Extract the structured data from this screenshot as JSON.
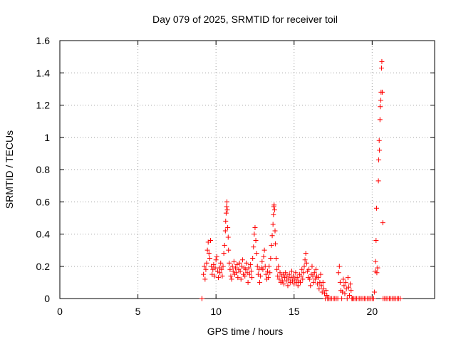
{
  "chart_data": {
    "type": "scatter",
    "title": "Day 079 of 2025, SRMTID for receiver toil",
    "xlabel": "GPS time / hours",
    "ylabel": "SRMTID / TECUs",
    "xlim": [
      0,
      24
    ],
    "ylim": [
      0,
      1.6
    ],
    "xticks": [
      0,
      5,
      10,
      15,
      20
    ],
    "xtick_labels": [
      "0",
      "5",
      "10",
      "15",
      "20"
    ],
    "yticks": [
      0,
      0.2,
      0.4,
      0.6,
      0.8,
      1.0,
      1.2,
      1.4,
      1.6
    ],
    "ytick_labels": [
      "0",
      "0.2",
      "0.4",
      "0.6",
      "0.8",
      "1",
      "1.2",
      "1.4",
      "1.6"
    ],
    "grid": true,
    "marker": "+",
    "color": "#ff0000",
    "series": [
      {
        "name": "SRMTID",
        "points": [
          [
            9.1,
            0.0
          ],
          [
            9.1,
            0.0
          ],
          [
            9.2,
            0.15
          ],
          [
            9.25,
            0.2
          ],
          [
            9.3,
            0.12
          ],
          [
            9.35,
            0.18
          ],
          [
            9.4,
            0.22
          ],
          [
            9.45,
            0.3
          ],
          [
            9.5,
            0.35
          ],
          [
            9.55,
            0.28
          ],
          [
            9.6,
            0.25
          ],
          [
            9.65,
            0.36
          ],
          [
            9.7,
            0.2
          ],
          [
            9.75,
            0.15
          ],
          [
            9.8,
            0.18
          ],
          [
            9.85,
            0.21
          ],
          [
            9.9,
            0.14
          ],
          [
            9.95,
            0.19
          ],
          [
            10.0,
            0.24
          ],
          [
            10.05,
            0.26
          ],
          [
            10.1,
            0.17
          ],
          [
            10.15,
            0.13
          ],
          [
            10.2,
            0.19
          ],
          [
            10.25,
            0.16
          ],
          [
            10.3,
            0.22
          ],
          [
            10.35,
            0.18
          ],
          [
            10.4,
            0.14
          ],
          [
            10.45,
            0.2
          ],
          [
            10.5,
            0.28
          ],
          [
            10.55,
            0.33
          ],
          [
            10.6,
            0.42
          ],
          [
            10.62,
            0.48
          ],
          [
            10.65,
            0.53
          ],
          [
            10.68,
            0.57
          ],
          [
            10.7,
            0.6
          ],
          [
            10.72,
            0.55
          ],
          [
            10.75,
            0.44
          ],
          [
            10.78,
            0.38
          ],
          [
            10.8,
            0.3
          ],
          [
            10.85,
            0.22
          ],
          [
            10.9,
            0.18
          ],
          [
            10.95,
            0.14
          ],
          [
            11.0,
            0.12
          ],
          [
            11.05,
            0.2
          ],
          [
            11.1,
            0.17
          ],
          [
            11.15,
            0.23
          ],
          [
            11.2,
            0.15
          ],
          [
            11.25,
            0.19
          ],
          [
            11.3,
            0.16
          ],
          [
            11.35,
            0.21
          ],
          [
            11.4,
            0.13
          ],
          [
            11.45,
            0.18
          ],
          [
            11.5,
            0.22
          ],
          [
            11.55,
            0.17
          ],
          [
            11.6,
            0.12
          ],
          [
            11.65,
            0.2
          ],
          [
            11.7,
            0.24
          ],
          [
            11.75,
            0.15
          ],
          [
            11.8,
            0.19
          ],
          [
            11.85,
            0.14
          ],
          [
            11.9,
            0.18
          ],
          [
            11.95,
            0.22
          ],
          [
            12.0,
            0.16
          ],
          [
            12.05,
            0.1
          ],
          [
            12.1,
            0.19
          ],
          [
            12.15,
            0.15
          ],
          [
            12.2,
            0.21
          ],
          [
            12.25,
            0.17
          ],
          [
            12.3,
            0.13
          ],
          [
            12.35,
            0.25
          ],
          [
            12.4,
            0.32
          ],
          [
            12.45,
            0.4
          ],
          [
            12.5,
            0.44
          ],
          [
            12.55,
            0.36
          ],
          [
            12.6,
            0.28
          ],
          [
            12.65,
            0.2
          ],
          [
            12.7,
            0.15
          ],
          [
            12.75,
            0.18
          ],
          [
            12.8,
            0.1
          ],
          [
            12.85,
            0.14
          ],
          [
            12.9,
            0.19
          ],
          [
            12.95,
            0.23
          ],
          [
            13.0,
            0.18
          ],
          [
            13.05,
            0.26
          ],
          [
            13.1,
            0.3
          ],
          [
            13.15,
            0.2
          ],
          [
            13.2,
            0.15
          ],
          [
            13.25,
            0.12
          ],
          [
            13.3,
            0.17
          ],
          [
            13.35,
            0.13
          ],
          [
            13.4,
            0.2
          ],
          [
            13.45,
            0.16
          ],
          [
            13.5,
            0.25
          ],
          [
            13.55,
            0.33
          ],
          [
            13.6,
            0.39
          ],
          [
            13.65,
            0.46
          ],
          [
            13.68,
            0.52
          ],
          [
            13.7,
            0.57
          ],
          [
            13.72,
            0.58
          ],
          [
            13.75,
            0.55
          ],
          [
            13.78,
            0.42
          ],
          [
            13.8,
            0.34
          ],
          [
            13.85,
            0.25
          ],
          [
            13.9,
            0.18
          ],
          [
            13.95,
            0.14
          ],
          [
            14.0,
            0.2
          ],
          [
            14.05,
            0.12
          ],
          [
            14.1,
            0.16
          ],
          [
            14.15,
            0.1
          ],
          [
            14.2,
            0.14
          ],
          [
            14.25,
            0.11
          ],
          [
            14.3,
            0.15
          ],
          [
            14.35,
            0.09
          ],
          [
            14.4,
            0.13
          ],
          [
            14.45,
            0.16
          ],
          [
            14.5,
            0.11
          ],
          [
            14.55,
            0.14
          ],
          [
            14.6,
            0.08
          ],
          [
            14.65,
            0.12
          ],
          [
            14.7,
            0.15
          ],
          [
            14.75,
            0.1
          ],
          [
            14.8,
            0.13
          ],
          [
            14.85,
            0.17
          ],
          [
            14.9,
            0.11
          ],
          [
            14.95,
            0.14
          ],
          [
            15.0,
            0.09
          ],
          [
            15.05,
            0.12
          ],
          [
            15.1,
            0.16
          ],
          [
            15.15,
            0.1
          ],
          [
            15.2,
            0.13
          ],
          [
            15.25,
            0.08
          ],
          [
            15.3,
            0.11
          ],
          [
            15.35,
            0.15
          ],
          [
            15.4,
            0.1
          ],
          [
            15.45,
            0.14
          ],
          [
            15.5,
            0.18
          ],
          [
            15.55,
            0.12
          ],
          [
            15.6,
            0.16
          ],
          [
            15.65,
            0.2
          ],
          [
            15.7,
            0.24
          ],
          [
            15.75,
            0.28
          ],
          [
            15.8,
            0.22
          ],
          [
            15.85,
            0.17
          ],
          [
            15.9,
            0.13
          ],
          [
            15.95,
            0.18
          ],
          [
            16.0,
            0.12
          ],
          [
            16.05,
            0.08
          ],
          [
            16.1,
            0.15
          ],
          [
            16.15,
            0.2
          ],
          [
            16.2,
            0.14
          ],
          [
            16.25,
            0.1
          ],
          [
            16.3,
            0.16
          ],
          [
            16.35,
            0.12
          ],
          [
            16.4,
            0.18
          ],
          [
            16.45,
            0.14
          ],
          [
            16.5,
            0.09
          ],
          [
            16.55,
            0.13
          ],
          [
            16.6,
            0.06
          ],
          [
            16.65,
            0.1
          ],
          [
            16.7,
            0.15
          ],
          [
            16.75,
            0.08
          ],
          [
            16.8,
            0.04
          ],
          [
            16.85,
            0.1
          ],
          [
            16.9,
            0.06
          ],
          [
            16.95,
            0.03
          ],
          [
            17.0,
            0.0
          ],
          [
            17.05,
            0.05
          ],
          [
            17.1,
            0.02
          ],
          [
            17.15,
            0.0
          ],
          [
            17.2,
            0.0
          ],
          [
            17.3,
            0.0
          ],
          [
            17.4,
            0.0
          ],
          [
            17.5,
            0.0
          ],
          [
            17.6,
            0.0
          ],
          [
            17.7,
            0.0
          ],
          [
            17.8,
            0.0
          ],
          [
            17.85,
            0.16
          ],
          [
            17.9,
            0.2
          ],
          [
            17.95,
            0.1
          ],
          [
            18.0,
            0.05
          ],
          [
            18.05,
            0.0
          ],
          [
            18.1,
            0.04
          ],
          [
            18.15,
            0.12
          ],
          [
            18.2,
            0.08
          ],
          [
            18.25,
            0.03
          ],
          [
            18.3,
            0.1
          ],
          [
            18.35,
            0.06
          ],
          [
            18.4,
            0.0
          ],
          [
            18.45,
            0.13
          ],
          [
            18.5,
            0.07
          ],
          [
            18.55,
            0.02
          ],
          [
            18.6,
            0.09
          ],
          [
            18.65,
            0.05
          ],
          [
            18.7,
            0.0
          ],
          [
            18.75,
            0.0
          ],
          [
            18.8,
            0.0
          ],
          [
            18.9,
            0.0
          ],
          [
            19.0,
            0.0
          ],
          [
            19.1,
            0.0
          ],
          [
            19.2,
            0.0
          ],
          [
            19.3,
            0.0
          ],
          [
            19.4,
            0.0
          ],
          [
            19.5,
            0.0
          ],
          [
            19.6,
            0.0
          ],
          [
            19.7,
            0.0
          ],
          [
            19.8,
            0.0
          ],
          [
            19.9,
            0.0
          ],
          [
            20.0,
            0.0
          ],
          [
            20.1,
            0.0
          ],
          [
            20.15,
            0.04
          ],
          [
            20.2,
            0.17
          ],
          [
            20.22,
            0.23
          ],
          [
            20.25,
            0.36
          ],
          [
            20.28,
            0.56
          ],
          [
            20.3,
            0.16
          ],
          [
            20.35,
            0.19
          ],
          [
            20.4,
            0.73
          ],
          [
            20.42,
            0.86
          ],
          [
            20.45,
            0.98
          ],
          [
            20.47,
            0.92
          ],
          [
            20.5,
            1.11
          ],
          [
            20.52,
            1.19
          ],
          [
            20.55,
            1.23
          ],
          [
            20.57,
            1.28
          ],
          [
            20.6,
            1.43
          ],
          [
            20.62,
            1.47
          ],
          [
            20.65,
            1.28
          ],
          [
            20.68,
            0.47
          ],
          [
            20.7,
            0.0
          ],
          [
            20.8,
            0.0
          ],
          [
            20.9,
            0.0
          ],
          [
            21.0,
            0.0
          ],
          [
            21.1,
            0.0
          ],
          [
            21.2,
            0.0
          ],
          [
            21.3,
            0.0
          ],
          [
            21.4,
            0.0
          ],
          [
            21.5,
            0.0
          ],
          [
            21.6,
            0.0
          ],
          [
            21.7,
            0.0
          ],
          [
            21.8,
            0.0
          ]
        ]
      }
    ]
  }
}
